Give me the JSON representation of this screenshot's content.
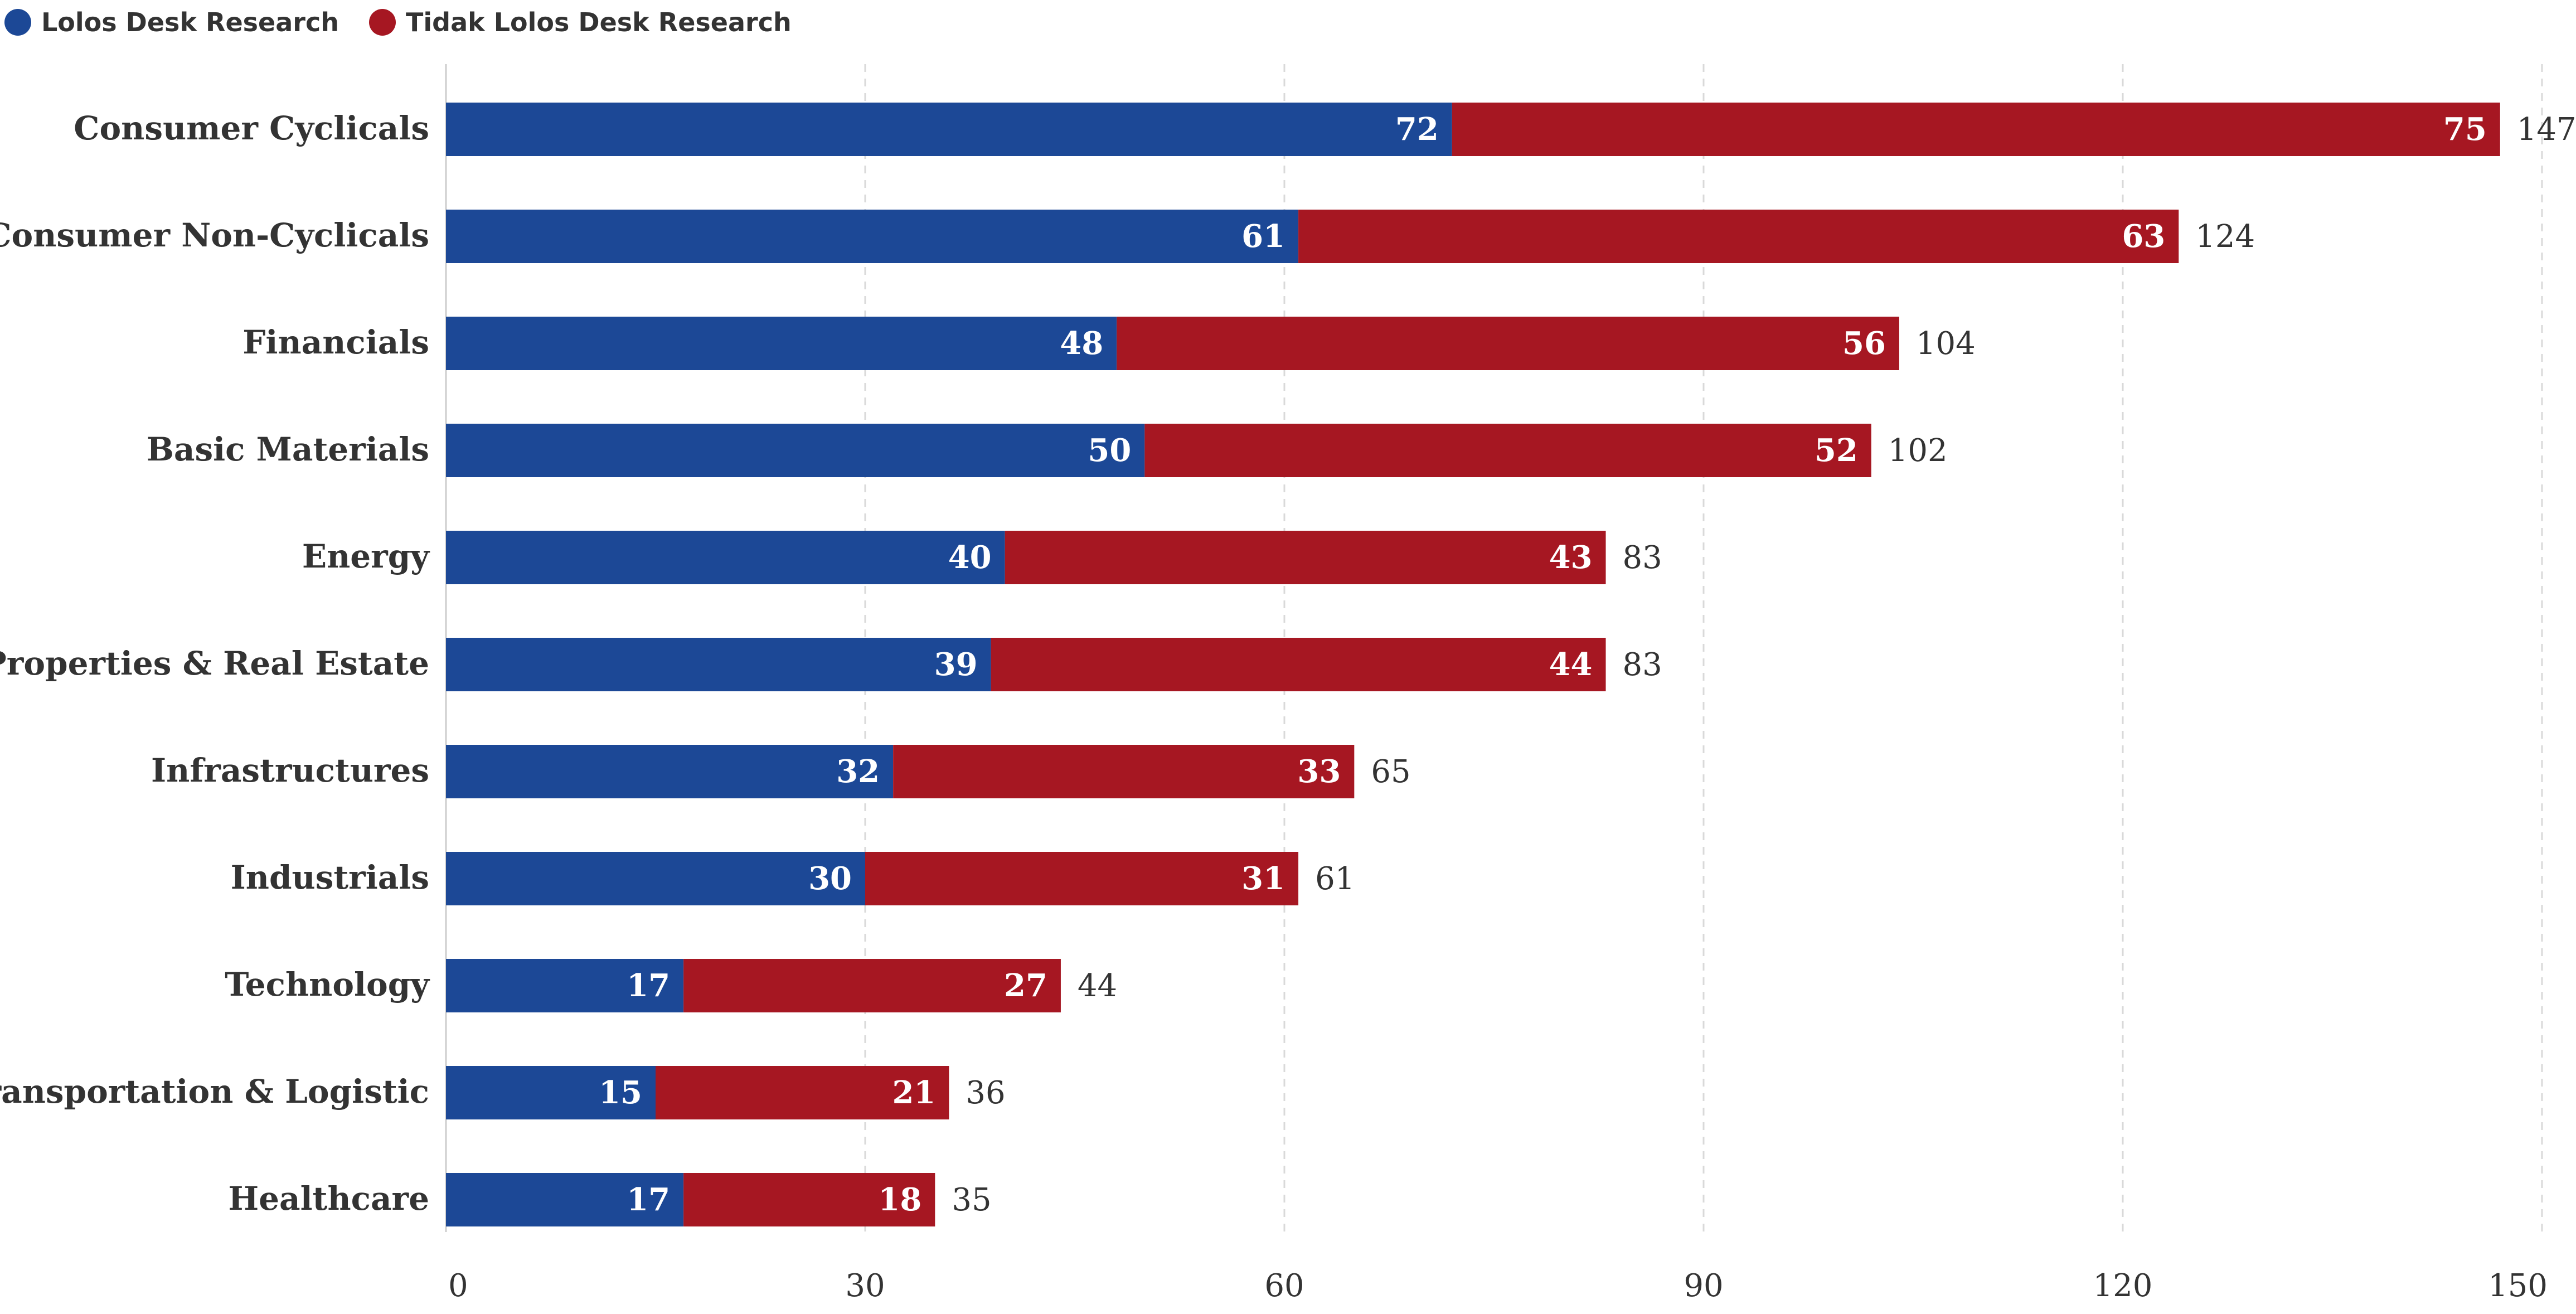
{
  "chart_data": {
    "type": "bar",
    "orientation": "horizontal",
    "stacked": true,
    "categories": [
      "Consumer Cyclicals",
      "Consumer Non-Cyclicals",
      "Financials",
      "Basic Materials",
      "Energy",
      "Properties & Real Estate",
      "Infrastructures",
      "Industrials",
      "Technology",
      "Transportation & Logistic",
      "Healthcare"
    ],
    "series": [
      {
        "name": "Lolos Desk Research",
        "color": "#1c4896",
        "values": [
          72,
          61,
          48,
          50,
          40,
          39,
          32,
          30,
          17,
          15,
          17
        ]
      },
      {
        "name": "Tidak Lolos Desk Research",
        "color": "#a61722",
        "values": [
          75,
          63,
          56,
          52,
          43,
          44,
          33,
          31,
          27,
          21,
          18
        ]
      }
    ],
    "totals": [
      147,
      124,
      104,
      102,
      83,
      83,
      65,
      61,
      44,
      36,
      35
    ],
    "xlim": [
      0,
      150
    ],
    "xticks": [
      0,
      30,
      60,
      90,
      120,
      150
    ],
    "grid": "vertical-dashed",
    "legend": "top-left",
    "title": "",
    "xlabel": "",
    "ylabel": ""
  }
}
